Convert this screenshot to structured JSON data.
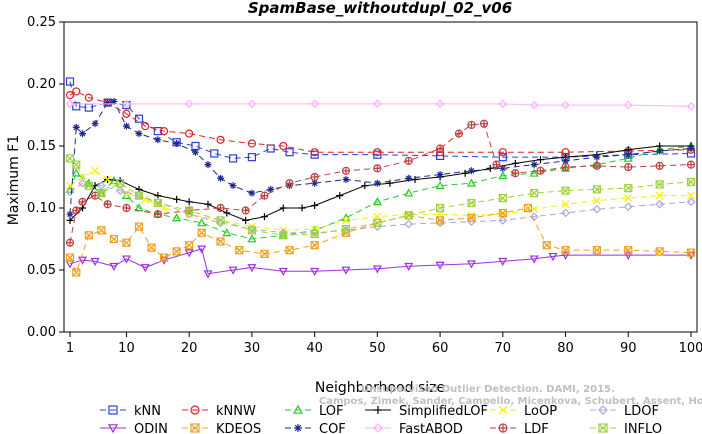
{
  "chart_data": {
    "type": "line",
    "title": "SpamBase_withoutdupl_02_v06",
    "xlabel": "Neighborhood size",
    "ylabel": "Maximum F1",
    "xlim": [
      1,
      100
    ],
    "ylim": [
      0.0,
      0.25
    ],
    "xticks": [
      1,
      10,
      20,
      30,
      40,
      50,
      60,
      70,
      80,
      90,
      100
    ],
    "yticks": [
      "0.00",
      "0.05",
      "0.10",
      "0.15",
      "0.20",
      "0.25"
    ],
    "legend_position": "bottom",
    "series": [
      {
        "name": "kNN",
        "color": "#2b3fd6",
        "marker": "square",
        "dash": "6,4",
        "points": [
          [
            1,
            0.202
          ],
          [
            2,
            0.182
          ],
          [
            4,
            0.181
          ],
          [
            7,
            0.185
          ],
          [
            10,
            0.183
          ],
          [
            12,
            0.172
          ],
          [
            15,
            0.162
          ],
          [
            18,
            0.153
          ],
          [
            21,
            0.15
          ],
          [
            24,
            0.144
          ],
          [
            27,
            0.14
          ],
          [
            30,
            0.141
          ],
          [
            33,
            0.148
          ],
          [
            36,
            0.145
          ],
          [
            40,
            0.143
          ],
          [
            50,
            0.143
          ],
          [
            60,
            0.142
          ],
          [
            70,
            0.141
          ],
          [
            80,
            0.141
          ],
          [
            90,
            0.143
          ],
          [
            100,
            0.144
          ]
        ]
      },
      {
        "name": "kNNW",
        "color": "#e02020",
        "marker": "circle",
        "dash": "6,4",
        "points": [
          [
            1,
            0.191
          ],
          [
            2,
            0.194
          ],
          [
            4,
            0.189
          ],
          [
            7,
            0.185
          ],
          [
            10,
            0.176
          ],
          [
            13,
            0.166
          ],
          [
            16,
            0.162
          ],
          [
            20,
            0.16
          ],
          [
            25,
            0.155
          ],
          [
            30,
            0.152
          ],
          [
            35,
            0.15
          ],
          [
            40,
            0.145
          ],
          [
            50,
            0.145
          ],
          [
            60,
            0.145
          ],
          [
            70,
            0.145
          ],
          [
            80,
            0.145
          ],
          [
            90,
            0.146
          ],
          [
            100,
            0.147
          ]
        ]
      },
      {
        "name": "LOF",
        "color": "#22cc22",
        "marker": "triangle",
        "dash": "6,4",
        "points": [
          [
            1,
            0.115
          ],
          [
            2,
            0.128
          ],
          [
            4,
            0.12
          ],
          [
            6,
            0.112
          ],
          [
            8,
            0.122
          ],
          [
            10,
            0.11
          ],
          [
            12,
            0.1
          ],
          [
            15,
            0.095
          ],
          [
            18,
            0.092
          ],
          [
            22,
            0.088
          ],
          [
            26,
            0.08
          ],
          [
            30,
            0.075
          ],
          [
            35,
            0.078
          ],
          [
            40,
            0.082
          ],
          [
            45,
            0.092
          ],
          [
            50,
            0.105
          ],
          [
            55,
            0.112
          ],
          [
            60,
            0.118
          ],
          [
            65,
            0.12
          ],
          [
            70,
            0.126
          ],
          [
            75,
            0.128
          ],
          [
            80,
            0.132
          ],
          [
            85,
            0.135
          ],
          [
            90,
            0.14
          ],
          [
            95,
            0.147
          ],
          [
            100,
            0.15
          ]
        ]
      },
      {
        "name": "SimplifiedLOF",
        "color": "#000000",
        "marker": "plus",
        "dash": "",
        "points": [
          [
            1,
            0.09
          ],
          [
            3,
            0.1
          ],
          [
            5,
            0.118
          ],
          [
            7,
            0.123
          ],
          [
            9,
            0.122
          ],
          [
            12,
            0.115
          ],
          [
            15,
            0.11
          ],
          [
            18,
            0.107
          ],
          [
            20,
            0.105
          ],
          [
            23,
            0.103
          ],
          [
            26,
            0.096
          ],
          [
            29,
            0.09
          ],
          [
            32,
            0.093
          ],
          [
            35,
            0.1
          ],
          [
            38,
            0.1
          ],
          [
            40,
            0.102
          ],
          [
            44,
            0.11
          ],
          [
            48,
            0.118
          ],
          [
            52,
            0.12
          ],
          [
            56,
            0.123
          ],
          [
            60,
            0.125
          ],
          [
            64,
            0.128
          ],
          [
            68,
            0.132
          ],
          [
            72,
            0.136
          ],
          [
            76,
            0.139
          ],
          [
            80,
            0.141
          ],
          [
            85,
            0.143
          ],
          [
            90,
            0.147
          ],
          [
            95,
            0.15
          ],
          [
            100,
            0.15
          ]
        ]
      },
      {
        "name": "LoOP",
        "color": "#f5f000",
        "marker": "x",
        "dash": "6,4",
        "points": [
          [
            1,
            0.118
          ],
          [
            3,
            0.125
          ],
          [
            5,
            0.13
          ],
          [
            7,
            0.123
          ],
          [
            10,
            0.112
          ],
          [
            13,
            0.107
          ],
          [
            16,
            0.1
          ],
          [
            20,
            0.095
          ],
          [
            25,
            0.09
          ],
          [
            30,
            0.085
          ],
          [
            35,
            0.082
          ],
          [
            40,
            0.083
          ],
          [
            45,
            0.09
          ],
          [
            50,
            0.093
          ],
          [
            55,
            0.095
          ],
          [
            60,
            0.095
          ],
          [
            65,
            0.094
          ],
          [
            70,
            0.095
          ],
          [
            75,
            0.099
          ],
          [
            80,
            0.103
          ],
          [
            85,
            0.106
          ],
          [
            90,
            0.108
          ],
          [
            95,
            0.11
          ],
          [
            100,
            0.11
          ]
        ]
      },
      {
        "name": "LDOF",
        "color": "#a8a8e0",
        "marker": "diamond",
        "dash": "6,4",
        "points": [
          [
            1,
            0.113
          ],
          [
            3,
            0.12
          ],
          [
            6,
            0.118
          ],
          [
            9,
            0.114
          ],
          [
            12,
            0.11
          ],
          [
            15,
            0.105
          ],
          [
            20,
            0.095
          ],
          [
            25,
            0.088
          ],
          [
            30,
            0.083
          ],
          [
            35,
            0.08
          ],
          [
            40,
            0.08
          ],
          [
            45,
            0.082
          ],
          [
            50,
            0.085
          ],
          [
            55,
            0.087
          ],
          [
            60,
            0.088
          ],
          [
            65,
            0.089
          ],
          [
            70,
            0.09
          ],
          [
            75,
            0.093
          ],
          [
            80,
            0.096
          ],
          [
            85,
            0.099
          ],
          [
            90,
            0.101
          ],
          [
            95,
            0.103
          ],
          [
            100,
            0.105
          ]
        ]
      },
      {
        "name": "ODIN",
        "color": "#9b30e0",
        "marker": "triangle-down",
        "dash": "",
        "points": [
          [
            1,
            0.055
          ],
          [
            3,
            0.058
          ],
          [
            5,
            0.057
          ],
          [
            8,
            0.053
          ],
          [
            10,
            0.059
          ],
          [
            13,
            0.052
          ],
          [
            16,
            0.058
          ],
          [
            20,
            0.064
          ],
          [
            22,
            0.067
          ],
          [
            23,
            0.047
          ],
          [
            27,
            0.05
          ],
          [
            30,
            0.052
          ],
          [
            35,
            0.049
          ],
          [
            40,
            0.049
          ],
          [
            45,
            0.05
          ],
          [
            50,
            0.051
          ],
          [
            55,
            0.053
          ],
          [
            60,
            0.054
          ],
          [
            65,
            0.055
          ],
          [
            70,
            0.057
          ],
          [
            75,
            0.059
          ],
          [
            78,
            0.061
          ],
          [
            80,
            0.062
          ],
          [
            90,
            0.062
          ],
          [
            100,
            0.062
          ]
        ]
      },
      {
        "name": "KDEOS",
        "color": "#f0a020",
        "marker": "square-x",
        "dash": "6,4",
        "points": [
          [
            1,
            0.06
          ],
          [
            2,
            0.048
          ],
          [
            4,
            0.078
          ],
          [
            6,
            0.082
          ],
          [
            8,
            0.075
          ],
          [
            10,
            0.072
          ],
          [
            12,
            0.085
          ],
          [
            14,
            0.068
          ],
          [
            16,
            0.06
          ],
          [
            18,
            0.065
          ],
          [
            20,
            0.07
          ],
          [
            22,
            0.08
          ],
          [
            25,
            0.073
          ],
          [
            28,
            0.066
          ],
          [
            32,
            0.063
          ],
          [
            36,
            0.066
          ],
          [
            40,
            0.07
          ],
          [
            45,
            0.08
          ],
          [
            50,
            0.088
          ],
          [
            55,
            0.094
          ],
          [
            60,
            0.09
          ],
          [
            65,
            0.092
          ],
          [
            70,
            0.096
          ],
          [
            74,
            0.1
          ],
          [
            77,
            0.07
          ],
          [
            80,
            0.066
          ],
          [
            85,
            0.066
          ],
          [
            90,
            0.066
          ],
          [
            95,
            0.065
          ],
          [
            100,
            0.064
          ]
        ]
      },
      {
        "name": "COF",
        "color": "#1e2a8a",
        "marker": "asterisk",
        "dash": "6,4",
        "points": [
          [
            1,
            0.095
          ],
          [
            2,
            0.165
          ],
          [
            3,
            0.16
          ],
          [
            5,
            0.168
          ],
          [
            7,
            0.185
          ],
          [
            8,
            0.186
          ],
          [
            10,
            0.166
          ],
          [
            12,
            0.16
          ],
          [
            15,
            0.155
          ],
          [
            18,
            0.152
          ],
          [
            21,
            0.145
          ],
          [
            23,
            0.135
          ],
          [
            25,
            0.124
          ],
          [
            27,
            0.118
          ],
          [
            30,
            0.112
          ],
          [
            33,
            0.115
          ],
          [
            36,
            0.118
          ],
          [
            40,
            0.12
          ],
          [
            45,
            0.123
          ],
          [
            50,
            0.12
          ],
          [
            55,
            0.124
          ],
          [
            60,
            0.127
          ],
          [
            65,
            0.13
          ],
          [
            70,
            0.132
          ],
          [
            75,
            0.135
          ],
          [
            80,
            0.138
          ],
          [
            85,
            0.141
          ],
          [
            90,
            0.143
          ],
          [
            95,
            0.146
          ],
          [
            100,
            0.148
          ]
        ]
      },
      {
        "name": "FastABOD",
        "color": "#ffb0ff",
        "marker": "diamond",
        "dash": "",
        "points": [
          [
            1,
            0.184
          ],
          [
            10,
            0.184
          ],
          [
            20,
            0.184
          ],
          [
            30,
            0.184
          ],
          [
            40,
            0.184
          ],
          [
            50,
            0.184
          ],
          [
            60,
            0.184
          ],
          [
            70,
            0.184
          ],
          [
            75,
            0.183
          ],
          [
            80,
            0.183
          ],
          [
            90,
            0.183
          ],
          [
            100,
            0.182
          ]
        ]
      },
      {
        "name": "LDF",
        "color": "#c04040",
        "marker": "circle-plus",
        "dash": "6,4",
        "points": [
          [
            1,
            0.072
          ],
          [
            2,
            0.098
          ],
          [
            3,
            0.105
          ],
          [
            5,
            0.11
          ],
          [
            7,
            0.103
          ],
          [
            10,
            0.1
          ],
          [
            15,
            0.095
          ],
          [
            20,
            0.098
          ],
          [
            25,
            0.1
          ],
          [
            29,
            0.098
          ],
          [
            32,
            0.11
          ],
          [
            36,
            0.12
          ],
          [
            40,
            0.125
          ],
          [
            45,
            0.13
          ],
          [
            50,
            0.132
          ],
          [
            55,
            0.138
          ],
          [
            60,
            0.148
          ],
          [
            63,
            0.16
          ],
          [
            65,
            0.167
          ],
          [
            67,
            0.168
          ],
          [
            69,
            0.135
          ],
          [
            72,
            0.128
          ],
          [
            76,
            0.13
          ],
          [
            80,
            0.133
          ],
          [
            85,
            0.134
          ],
          [
            90,
            0.133
          ],
          [
            95,
            0.134
          ],
          [
            100,
            0.135
          ]
        ]
      },
      {
        "name": "INFLO",
        "color": "#a0d040",
        "marker": "square-x",
        "dash": "6,4",
        "points": [
          [
            1,
            0.14
          ],
          [
            2,
            0.135
          ],
          [
            4,
            0.118
          ],
          [
            6,
            0.112
          ],
          [
            9,
            0.12
          ],
          [
            12,
            0.11
          ],
          [
            15,
            0.104
          ],
          [
            20,
            0.098
          ],
          [
            25,
            0.09
          ],
          [
            30,
            0.082
          ],
          [
            35,
            0.078
          ],
          [
            40,
            0.079
          ],
          [
            45,
            0.083
          ],
          [
            50,
            0.088
          ],
          [
            55,
            0.094
          ],
          [
            60,
            0.1
          ],
          [
            65,
            0.104
          ],
          [
            70,
            0.108
          ],
          [
            75,
            0.112
          ],
          [
            80,
            0.114
          ],
          [
            85,
            0.115
          ],
          [
            90,
            0.116
          ],
          [
            95,
            0.119
          ],
          [
            100,
            0.121
          ]
        ]
      }
    ]
  },
  "watermark": {
    "line1": "Unsupervised Outlier Detection. DAMI, 2015.",
    "line2": "Campos, Zimek, Sander, Campello, Micenkova, Schubert, Assent, Houle"
  }
}
